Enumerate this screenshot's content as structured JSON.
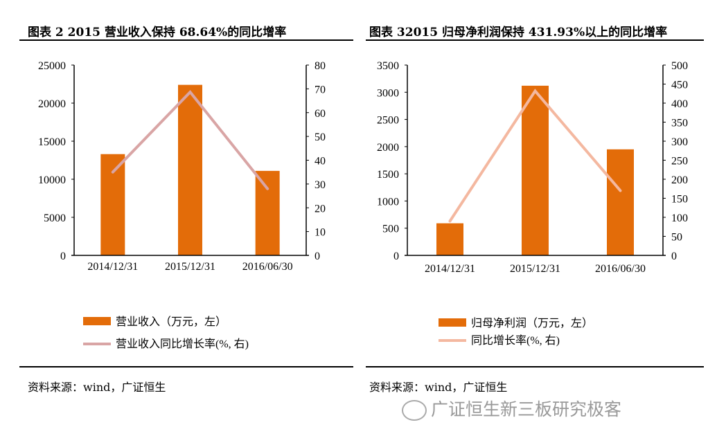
{
  "left": {
    "title": "图表 2 2015 营业收入保持 68.64%的同比增率",
    "source": "资料来源：wind，广证恒生"
  },
  "right": {
    "title": "图表 32015 归母净利润保持 431.93%以上的同比增率",
    "source": "资料来源：wind，广证恒生"
  },
  "watermark": "广证恒生新三板研究极客",
  "chart_data": [
    {
      "type": "bar+line",
      "categories": [
        "2014/12/31",
        "2015/12/31",
        "2016/06/30"
      ],
      "series": [
        {
          "name": "营业收入（万元，左）",
          "type": "bar",
          "axis": "left",
          "values": [
            13300,
            22400,
            11100
          ],
          "color": "#E36C09"
        },
        {
          "name": "营业收入同比增长率(%, 右)",
          "type": "line",
          "axis": "right",
          "values": [
            35,
            68.64,
            28
          ],
          "color": "#D9A5A5"
        }
      ],
      "ylim_left": [
        0,
        25000
      ],
      "yticks_left": [
        0,
        5000,
        10000,
        15000,
        20000,
        25000
      ],
      "ylim_right": [
        0,
        80
      ],
      "yticks_right": [
        0,
        10,
        20,
        30,
        40,
        50,
        60,
        70,
        80
      ],
      "legend": "bottom",
      "grid": false
    },
    {
      "type": "bar+line",
      "categories": [
        "2014/12/31",
        "2015/12/31",
        "2016/06/30"
      ],
      "series": [
        {
          "name": "归母净利润（万元，左）",
          "type": "bar",
          "axis": "left",
          "values": [
            590,
            3120,
            1950
          ],
          "color": "#E36C09"
        },
        {
          "name": "同比增长率(%, 右)",
          "type": "line",
          "axis": "right",
          "values": [
            90,
            431.93,
            170
          ],
          "color": "#F4B8A0"
        }
      ],
      "ylim_left": [
        0,
        3500
      ],
      "yticks_left": [
        0,
        500,
        1000,
        1500,
        2000,
        2500,
        3000,
        3500
      ],
      "ylim_right": [
        0,
        500
      ],
      "yticks_right": [
        0,
        50,
        100,
        150,
        200,
        250,
        300,
        350,
        400,
        450,
        500
      ],
      "legend": "bottom",
      "grid": false
    }
  ]
}
